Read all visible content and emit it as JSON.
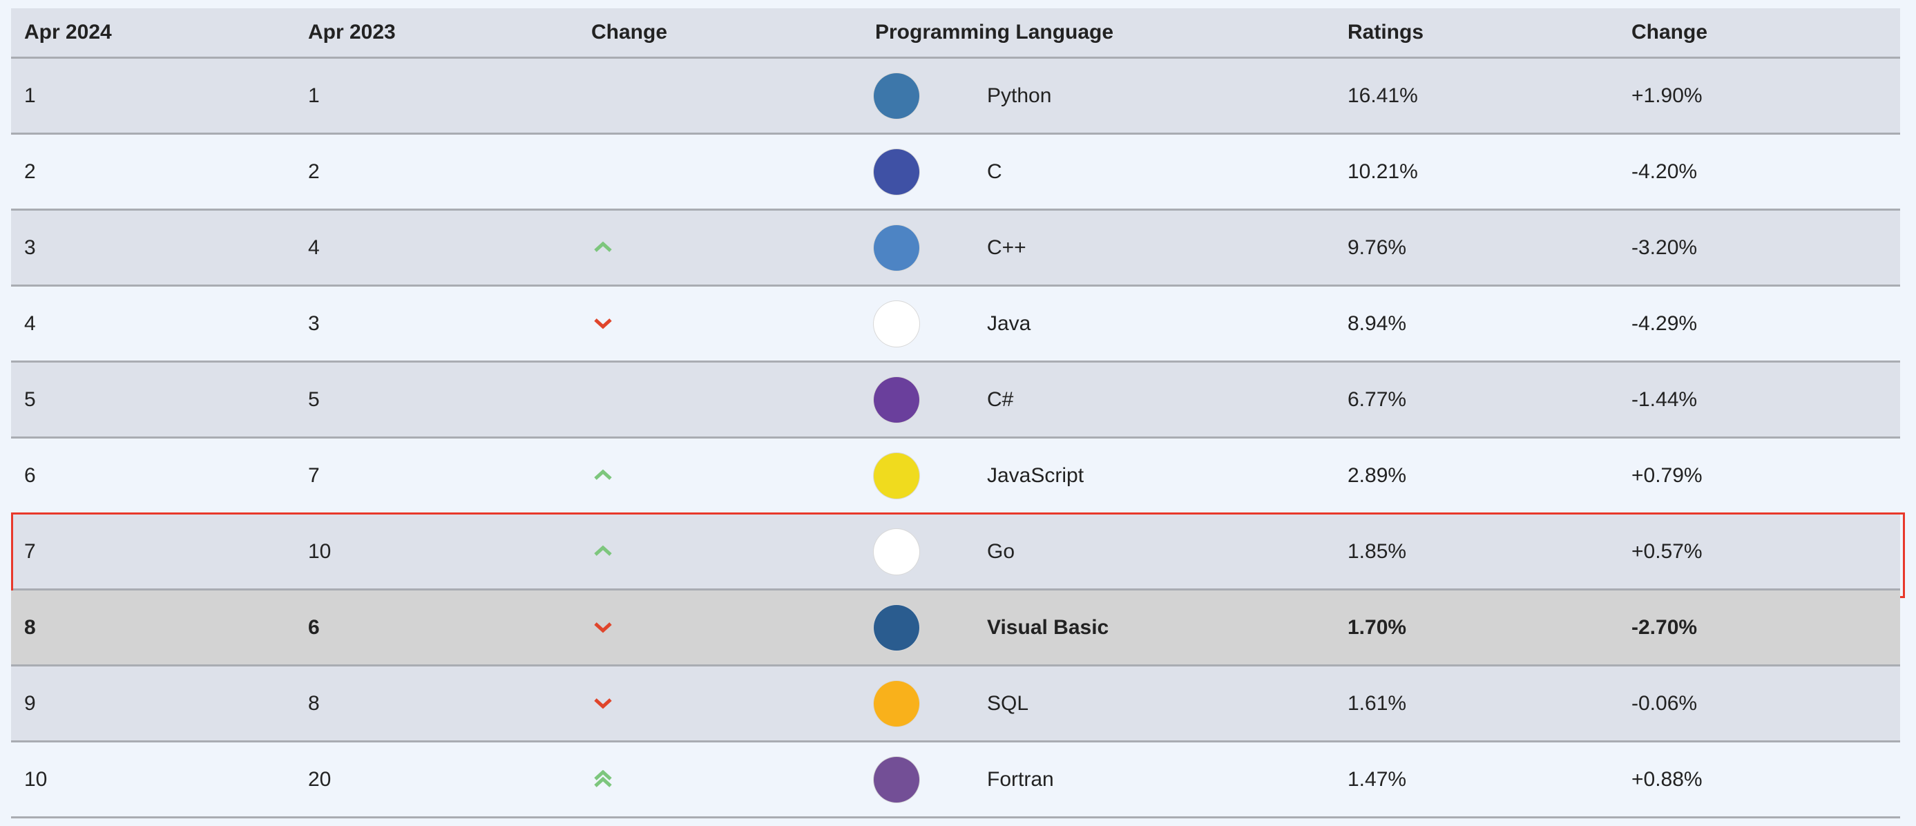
{
  "table": {
    "header": [
      "Apr 2024",
      "Apr 2023",
      "Change",
      "Programming Language",
      "Ratings",
      "Change"
    ],
    "rows": [
      {
        "cells": [
          "1",
          "1",
          "Python",
          "16.41%",
          "+1.90%"
        ],
        "trend": null,
        "logo": "#3d77aa"
      },
      {
        "cells": [
          "2",
          "2",
          "C",
          "10.21%",
          "-4.20%"
        ],
        "trend": null,
        "logo": "#3f51a5"
      },
      {
        "cells": [
          "3",
          "4",
          "C++",
          "9.76%",
          "-3.20%"
        ],
        "trend": "up",
        "logo": "#4d84c4"
      },
      {
        "cells": [
          "4",
          "3",
          "Java",
          "8.94%",
          "-4.29%"
        ],
        "trend": "down",
        "logo": "#ffffff"
      },
      {
        "cells": [
          "5",
          "5",
          "C#",
          "6.77%",
          "-1.44%"
        ],
        "trend": null,
        "logo": "#6a3f9c"
      },
      {
        "cells": [
          "6",
          "7",
          "JavaScript",
          "2.89%",
          "+0.79%"
        ],
        "trend": "up",
        "logo": "#f0db1e"
      },
      {
        "cells": [
          "7",
          "10",
          "Go",
          "1.85%",
          "+0.57%"
        ],
        "trend": "up",
        "logo": "#ffffff",
        "selected": true
      },
      {
        "cells": [
          "8",
          "6",
          "Visual Basic",
          "1.70%",
          "-2.70%"
        ],
        "trend": "down",
        "logo": "#2a5c8f",
        "highlight": true
      },
      {
        "cells": [
          "9",
          "8",
          "SQL",
          "1.61%",
          "-0.06%"
        ],
        "trend": "down",
        "logo": "#f9b11b"
      },
      {
        "cells": [
          "10",
          "20",
          "Fortran",
          "1.47%",
          "+0.88%"
        ],
        "trend": "up2",
        "logo": "#734f96"
      }
    ]
  }
}
